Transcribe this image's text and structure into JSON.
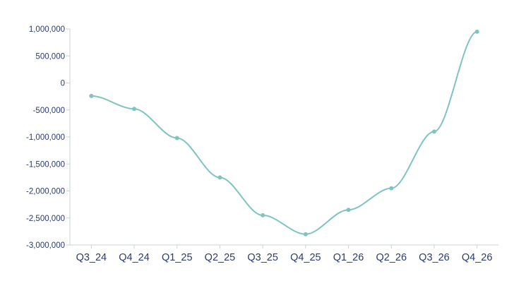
{
  "chart_data": {
    "type": "line",
    "title": "",
    "xlabel": "",
    "ylabel": "",
    "categories": [
      "Q3_24",
      "Q4_24",
      "Q1_25",
      "Q2_25",
      "Q3_25",
      "Q4_25",
      "Q1_26",
      "Q2_26",
      "Q3_26",
      "Q4_26"
    ],
    "series": [
      {
        "values": [
          -240000,
          -480000,
          -1020000,
          -1750000,
          -2450000,
          -2800000,
          -2350000,
          -1950000,
          -900000,
          950000
        ]
      }
    ],
    "yticks": [
      "1,000,000",
      "500,000",
      "0",
      "-500,000",
      "-1,000,000",
      "-1,500,000",
      "-2,000,000",
      "-2,500,000",
      "-3,000,000"
    ],
    "ylim": [
      -3000000,
      1000000
    ],
    "grid": false,
    "line_color": "#7fc4c0",
    "axis_color": "#c9d3d8",
    "text_color": "#2d3a6b"
  }
}
